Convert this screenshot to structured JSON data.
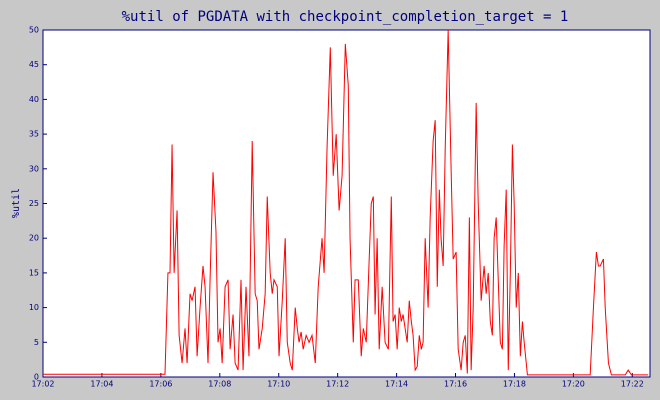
{
  "chart_data": {
    "type": "line",
    "title": "%util of PGDATA with checkpoint_completion_target = 1",
    "ylabel": "%util",
    "xlim": [
      1022,
      1042.6
    ],
    "ylim": [
      0,
      50
    ],
    "xticks": [
      {
        "value": 1022,
        "label": "17:02"
      },
      {
        "value": 1024,
        "label": "17:04"
      },
      {
        "value": 1026,
        "label": "17:06"
      },
      {
        "value": 1028,
        "label": "17:08"
      },
      {
        "value": 1030,
        "label": "17:10"
      },
      {
        "value": 1032,
        "label": "17:12"
      },
      {
        "value": 1034,
        "label": "17:14"
      },
      {
        "value": 1036,
        "label": "17:16"
      },
      {
        "value": 1038,
        "label": "17:18"
      },
      {
        "value": 1040,
        "label": "17:20"
      },
      {
        "value": 1042,
        "label": "17:22"
      }
    ],
    "yticks": [
      0,
      5,
      10,
      15,
      20,
      25,
      30,
      35,
      40,
      45,
      50
    ],
    "grid": false,
    "series": [
      {
        "name": "%util",
        "color": "#ff0000",
        "x": [
          1022.0,
          1026.14,
          1026.24,
          1026.31,
          1026.38,
          1026.45,
          1026.55,
          1026.62,
          1026.72,
          1026.82,
          1026.89,
          1026.99,
          1027.06,
          1027.16,
          1027.23,
          1027.33,
          1027.43,
          1027.5,
          1027.6,
          1027.67,
          1027.77,
          1027.87,
          1027.94,
          1028.01,
          1028.08,
          1028.18,
          1028.28,
          1028.35,
          1028.45,
          1028.52,
          1028.62,
          1028.72,
          1028.79,
          1028.89,
          1028.99,
          1029.1,
          1029.2,
          1029.27,
          1029.33,
          1029.44,
          1029.54,
          1029.61,
          1029.71,
          1029.78,
          1029.84,
          1029.95,
          1030.01,
          1030.12,
          1030.22,
          1030.29,
          1030.39,
          1030.46,
          1030.56,
          1030.63,
          1030.69,
          1030.76,
          1030.83,
          1030.93,
          1031.03,
          1031.13,
          1031.24,
          1031.34,
          1031.47,
          1031.54,
          1031.64,
          1031.75,
          1031.85,
          1031.95,
          1032.05,
          1032.15,
          1032.26,
          1032.36,
          1032.42,
          1032.53,
          1032.59,
          1032.7,
          1032.8,
          1032.87,
          1032.97,
          1033.07,
          1033.14,
          1033.21,
          1033.27,
          1033.34,
          1033.41,
          1033.51,
          1033.61,
          1033.72,
          1033.82,
          1033.88,
          1033.95,
          1034.02,
          1034.09,
          1034.16,
          1034.22,
          1034.29,
          1034.36,
          1034.43,
          1034.5,
          1034.56,
          1034.63,
          1034.7,
          1034.77,
          1034.84,
          1034.9,
          1034.97,
          1035.07,
          1035.14,
          1035.24,
          1035.31,
          1035.38,
          1035.45,
          1035.51,
          1035.58,
          1035.65,
          1035.75,
          1035.85,
          1035.92,
          1036.02,
          1036.09,
          1036.19,
          1036.26,
          1036.33,
          1036.4,
          1036.47,
          1036.53,
          1036.6,
          1036.7,
          1036.77,
          1036.87,
          1036.97,
          1037.04,
          1037.11,
          1037.18,
          1037.25,
          1037.31,
          1037.38,
          1037.45,
          1037.52,
          1037.59,
          1037.65,
          1037.72,
          1037.79,
          1037.86,
          1037.93,
          1037.99,
          1038.06,
          1038.13,
          1038.2,
          1038.27,
          1038.33,
          1038.44,
          1040.57,
          1040.68,
          1040.78,
          1040.85,
          1040.91,
          1041.02,
          1041.08,
          1041.19,
          1041.29,
          1041.76,
          1041.86,
          1041.97,
          1042.54
        ],
        "values": [
          0.4,
          0.4,
          15,
          15,
          33.5,
          15,
          24,
          6,
          2,
          7,
          2,
          12,
          11,
          13,
          3,
          10,
          16,
          13,
          2,
          14,
          29.5,
          21,
          5,
          7,
          2,
          13,
          14,
          4,
          9,
          2,
          1,
          14,
          1,
          13,
          3,
          34,
          12,
          11,
          4,
          7,
          12,
          26,
          15,
          12,
          14,
          13,
          3,
          11,
          20,
          5,
          2,
          1,
          10,
          7,
          5,
          6.5,
          4,
          6,
          5,
          6,
          2,
          13,
          20,
          15,
          33,
          47.5,
          29,
          35,
          24,
          29,
          48,
          42,
          20,
          5,
          14,
          14,
          3,
          7,
          5,
          17,
          25,
          26,
          9,
          20,
          4,
          13,
          5,
          4,
          26,
          8,
          9,
          4,
          10,
          8,
          9,
          7,
          5,
          11,
          8,
          6,
          1,
          1.5,
          6,
          4,
          5,
          20,
          10,
          23,
          34,
          37,
          13,
          27,
          20,
          16,
          33,
          50,
          30,
          17,
          18,
          4,
          1,
          5,
          6,
          0.5,
          23,
          1,
          10,
          39.5,
          25,
          11,
          16,
          12,
          15,
          8,
          6,
          20,
          23,
          14,
          5,
          4,
          19,
          27,
          1,
          15,
          33.5,
          25,
          10,
          15,
          3,
          8,
          5,
          0.3,
          0.3,
          10,
          18,
          16,
          16,
          17,
          10,
          2,
          0.3,
          0.3,
          1,
          0.3,
          0.3
        ]
      }
    ]
  }
}
